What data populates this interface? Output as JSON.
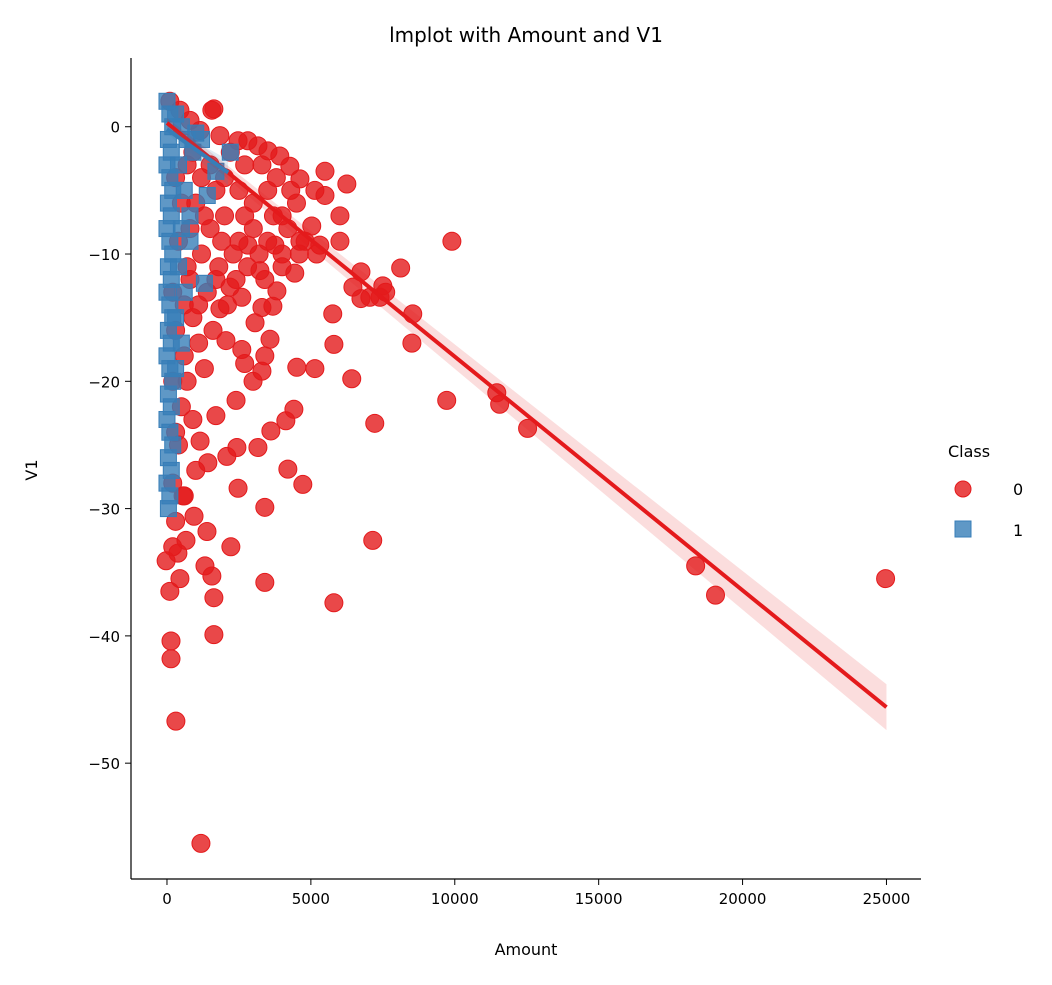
{
  "chart_data": {
    "type": "scatter",
    "title": "lmplot with Amount and V1",
    "xlabel": "Amount",
    "ylabel": "V1",
    "xlim": [
      -1250,
      26200
    ],
    "ylim": [
      -59.1,
      5.4
    ],
    "xticks": [
      0,
      5000,
      10000,
      15000,
      20000,
      25000
    ],
    "xtick_labels": [
      "0",
      "5000",
      "10000",
      "15000",
      "20000",
      "25000"
    ],
    "yticks": [
      0,
      -10,
      -20,
      -30,
      -40,
      -50
    ],
    "ytick_labels": [
      "0",
      "−10",
      "−20",
      "−30",
      "−40",
      "−50"
    ],
    "grid": false,
    "legend": {
      "title": "Class",
      "placement": "center-right",
      "entries": [
        "0",
        "1"
      ]
    },
    "series": [
      {
        "name": "0",
        "color": "#e41a1c",
        "marker": "circle",
        "regression": {
          "x_range": [
            0,
            25000
          ],
          "intercept": 0.3,
          "slope": -0.001836,
          "ci_halfwidth": [
            0.4,
            1.8
          ]
        },
        "points": [
          [
            24970,
            -35.5
          ],
          [
            19060,
            -36.8
          ],
          [
            18370,
            -34.5
          ],
          [
            12530,
            -23.7
          ],
          [
            11560,
            -21.8
          ],
          [
            11460,
            -20.9
          ],
          [
            9720,
            -21.5
          ],
          [
            9900,
            -9.0
          ],
          [
            8510,
            -17.0
          ],
          [
            8540,
            -14.7
          ],
          [
            8120,
            -11.1
          ],
          [
            7600,
            -13.0
          ],
          [
            7500,
            -12.5
          ],
          [
            7400,
            -13.4
          ],
          [
            7050,
            -13.4
          ],
          [
            7220,
            -23.3
          ],
          [
            7150,
            -32.5
          ],
          [
            6740,
            -11.4
          ],
          [
            6460,
            -12.6
          ],
          [
            6740,
            -13.5
          ],
          [
            5760,
            -14.7
          ],
          [
            6420,
            -19.8
          ],
          [
            5800,
            -17.1
          ],
          [
            5140,
            -19.0
          ],
          [
            4510,
            -18.9
          ],
          [
            5800,
            -37.4
          ],
          [
            4720,
            -28.1
          ],
          [
            4200,
            -26.9
          ],
          [
            4410,
            -22.2
          ],
          [
            4130,
            -23.1
          ],
          [
            3610,
            -23.9
          ],
          [
            3400,
            -35.8
          ],
          [
            3400,
            -29.9
          ],
          [
            3160,
            -25.2
          ],
          [
            2470,
            -28.4
          ],
          [
            2220,
            -33.0
          ],
          [
            2080,
            -25.9
          ],
          [
            2430,
            -25.2
          ],
          [
            1630,
            -37.0
          ],
          [
            1630,
            -39.9
          ],
          [
            1180,
            -56.3
          ],
          [
            310,
            -46.7
          ],
          [
            140,
            -41.8
          ],
          [
            140,
            -40.4
          ],
          [
            100,
            -36.5
          ],
          [
            450,
            -35.5
          ],
          [
            -30,
            -34.1
          ],
          [
            380,
            -33.5
          ],
          [
            660,
            -32.5
          ],
          [
            1390,
            -31.8
          ],
          [
            1320,
            -34.5
          ],
          [
            1560,
            -35.3
          ],
          [
            940,
            -30.6
          ],
          [
            560,
            -29.0
          ],
          [
            1420,
            -26.4
          ],
          [
            1150,
            -24.7
          ],
          [
            1700,
            -22.7
          ],
          [
            2400,
            -21.5
          ],
          [
            2990,
            -20.0
          ],
          [
            3300,
            -19.2
          ],
          [
            2700,
            -18.6
          ],
          [
            3400,
            -18.0
          ],
          [
            2600,
            -17.5
          ],
          [
            2050,
            -16.8
          ],
          [
            3580,
            -16.7
          ],
          [
            3060,
            -15.4
          ],
          [
            3300,
            -14.2
          ],
          [
            3680,
            -14.1
          ],
          [
            2600,
            -13.4
          ],
          [
            1840,
            -14.3
          ],
          [
            2190,
            -12.6
          ],
          [
            3820,
            -12.9
          ],
          [
            4440,
            -11.5
          ],
          [
            3230,
            -11.3
          ],
          [
            2810,
            -9.3
          ],
          [
            3750,
            -9.3
          ],
          [
            4620,
            -9.0
          ],
          [
            5310,
            -9.3
          ],
          [
            6010,
            -9.0
          ],
          [
            5030,
            -7.8
          ],
          [
            6010,
            -7.0
          ],
          [
            5490,
            -5.4
          ],
          [
            6250,
            -4.5
          ],
          [
            5490,
            -3.5
          ],
          [
            5140,
            -5.0
          ],
          [
            4620,
            -4.1
          ],
          [
            4270,
            -3.1
          ],
          [
            3920,
            -2.3
          ],
          [
            3510,
            -1.9
          ],
          [
            3160,
            -1.5
          ],
          [
            2810,
            -1.1
          ],
          [
            2470,
            -1.1
          ],
          [
            1840,
            -0.7
          ],
          [
            1630,
            1.4
          ],
          [
            1560,
            1.3
          ],
          [
            1150,
            -0.3
          ],
          [
            800,
            0.5
          ],
          [
            450,
            1.3
          ],
          [
            100,
            2.0
          ],
          [
            1500,
            -3
          ],
          [
            2000,
            -4
          ],
          [
            2500,
            -5
          ],
          [
            3000,
            -6
          ],
          [
            3500,
            -5
          ],
          [
            4000,
            -7
          ],
          [
            1000,
            -6
          ],
          [
            1500,
            -8
          ],
          [
            2000,
            -7
          ],
          [
            2500,
            -9
          ],
          [
            3000,
            -8
          ],
          [
            3500,
            -9
          ],
          [
            4000,
            -10
          ],
          [
            4500,
            -6
          ],
          [
            4800,
            -9
          ],
          [
            1200,
            -10
          ],
          [
            1800,
            -11
          ],
          [
            2300,
            -10
          ],
          [
            2800,
            -11
          ],
          [
            3200,
            -10
          ],
          [
            800,
            -12
          ],
          [
            1400,
            -13
          ],
          [
            900,
            -15
          ],
          [
            600,
            -18
          ],
          [
            1100,
            -17
          ],
          [
            1600,
            -16
          ],
          [
            700,
            -20
          ],
          [
            1300,
            -19
          ],
          [
            500,
            -22
          ],
          [
            900,
            -23
          ],
          [
            400,
            -25
          ],
          [
            1000,
            -27
          ],
          [
            600,
            -29
          ],
          [
            300,
            -31
          ],
          [
            200,
            -33
          ],
          [
            200,
            -28
          ],
          [
            300,
            -24
          ],
          [
            200,
            -20
          ],
          [
            300,
            -16
          ],
          [
            200,
            -13
          ],
          [
            400,
            -9
          ],
          [
            500,
            -6
          ],
          [
            700,
            -3
          ],
          [
            900,
            -2
          ],
          [
            300,
            -4
          ],
          [
            1200,
            -4
          ],
          [
            1700,
            -5
          ],
          [
            2200,
            -2
          ],
          [
            2700,
            -3
          ],
          [
            3300,
            -3
          ],
          [
            3800,
            -4
          ],
          [
            4300,
            -5
          ],
          [
            4200,
            -8
          ],
          [
            3700,
            -7
          ],
          [
            2700,
            -7
          ],
          [
            1900,
            -9
          ],
          [
            1700,
            -12
          ],
          [
            2100,
            -14
          ],
          [
            2400,
            -12
          ],
          [
            1300,
            -7
          ],
          [
            1100,
            -14
          ],
          [
            700,
            -11
          ],
          [
            800,
            -8
          ],
          [
            600,
            -14
          ],
          [
            4000,
            -11
          ],
          [
            3400,
            -12
          ],
          [
            4600,
            -10
          ],
          [
            5200,
            -10
          ]
        ]
      },
      {
        "name": "1",
        "color": "#377eb8",
        "marker": "square",
        "regression": {
          "x_range": [
            0,
            2125
          ],
          "intercept": -0.2,
          "slope": -0.0016,
          "ci_halfwidth": [
            0.3,
            1.0
          ]
        },
        "points": [
          [
            0,
            2
          ],
          [
            100,
            1
          ],
          [
            200,
            0
          ],
          [
            50,
            -1
          ],
          [
            150,
            -2
          ],
          [
            0,
            -3
          ],
          [
            100,
            -4
          ],
          [
            200,
            -5
          ],
          [
            50,
            -6
          ],
          [
            150,
            -7
          ],
          [
            0,
            -8
          ],
          [
            100,
            -9
          ],
          [
            200,
            -10
          ],
          [
            50,
            -11
          ],
          [
            150,
            -12
          ],
          [
            0,
            -13
          ],
          [
            100,
            -14
          ],
          [
            200,
            -15
          ],
          [
            50,
            -16
          ],
          [
            150,
            -17
          ],
          [
            0,
            -18
          ],
          [
            100,
            -19
          ],
          [
            200,
            -20
          ],
          [
            50,
            -21
          ],
          [
            150,
            -22
          ],
          [
            0,
            -23
          ],
          [
            100,
            -24
          ],
          [
            200,
            -25
          ],
          [
            50,
            -26
          ],
          [
            150,
            -27
          ],
          [
            0,
            -28
          ],
          [
            100,
            -29
          ],
          [
            50,
            -30
          ],
          [
            300,
            1
          ],
          [
            500,
            0
          ],
          [
            700,
            -1
          ],
          [
            900,
            -2
          ],
          [
            400,
            -3
          ],
          [
            600,
            -5
          ],
          [
            800,
            -7
          ],
          [
            800,
            -9
          ],
          [
            500,
            -8
          ],
          [
            400,
            -11
          ],
          [
            600,
            -13
          ],
          [
            300,
            -15
          ],
          [
            500,
            -17
          ],
          [
            300,
            -19
          ],
          [
            1300,
            -12.3
          ],
          [
            1400,
            -5.4
          ],
          [
            2200,
            -2
          ],
          [
            1200,
            -1
          ],
          [
            1000,
            -0.5
          ],
          [
            1700,
            -3.5
          ]
        ]
      }
    ]
  }
}
